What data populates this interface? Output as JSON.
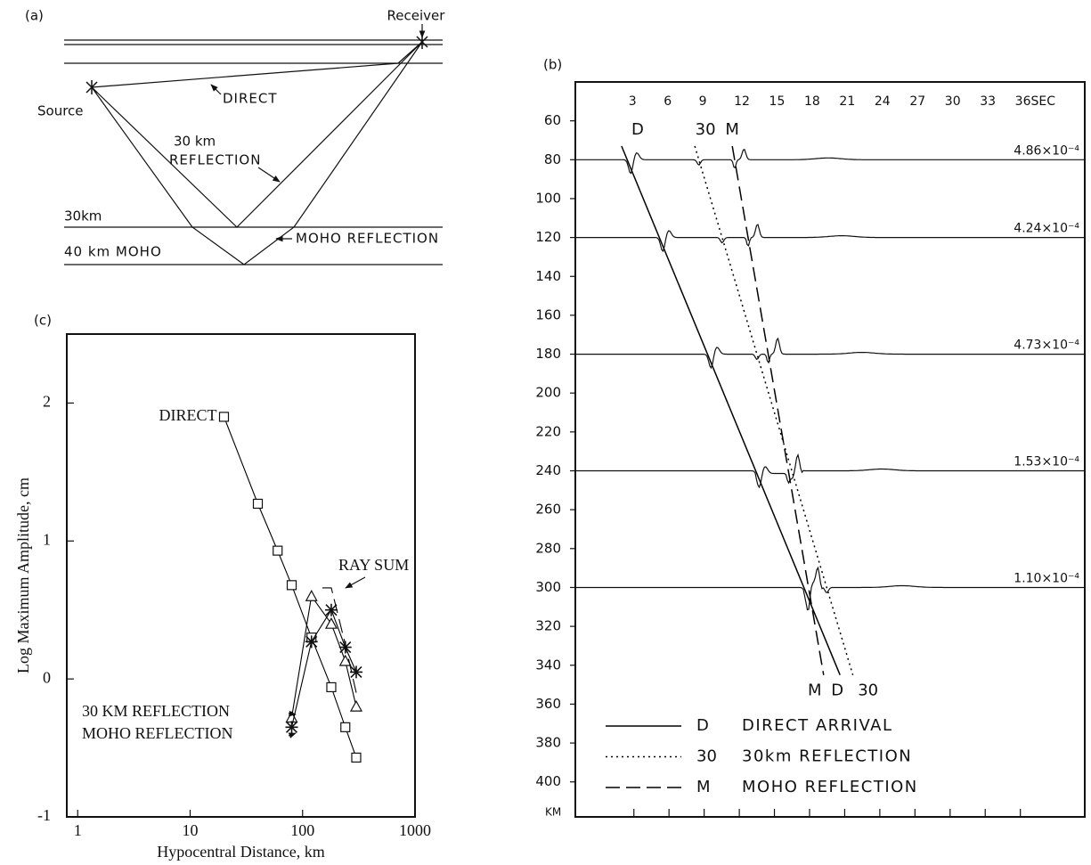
{
  "panel_a": {
    "label": "(a)",
    "receiver": "Receiver",
    "source": "Source",
    "direct": "DIRECT",
    "reflection_30_depth": "30 km",
    "reflection_30_word": "REFLECTION",
    "moho_reflection": "MOHO REFLECTION",
    "depth_30": "30km",
    "moho": "40 km MOHO"
  },
  "chart_data": [
    {
      "type": "seismogram",
      "panel_label": "(b)",
      "ylabel": "KM",
      "xlim": [
        -2,
        41.5
      ],
      "ylim": [
        40,
        418
      ],
      "xticks": [
        3,
        6,
        9,
        12,
        15,
        18,
        21,
        24,
        27,
        30,
        33,
        {
          "value": 36,
          "label": "36SEC"
        }
      ],
      "yticks": [
        60,
        80,
        100,
        120,
        140,
        160,
        180,
        200,
        220,
        240,
        260,
        280,
        300,
        320,
        340,
        360,
        380,
        400
      ],
      "traces": [
        {
          "distance": 80,
          "amplitude": "4.86×10⁻⁴"
        },
        {
          "distance": 120,
          "amplitude": "4.24×10⁻⁴"
        },
        {
          "distance": 180,
          "amplitude": "4.73×10⁻⁴"
        },
        {
          "distance": 240,
          "amplitude": "1.53×10⁻⁴"
        },
        {
          "distance": 300,
          "amplitude": "1.10×10⁻⁴"
        }
      ],
      "series": [
        {
          "name": "D",
          "label": "DIRECT ARRIVAL",
          "dash": "solid",
          "color": "#000000",
          "x": [
            1.95,
            20.6
          ],
          "values": [
            73,
            345
          ]
        },
        {
          "name": "30",
          "label": "30km REFLECTION",
          "dash": "dotted",
          "color": "#000000",
          "x": [
            8.2,
            21.7
          ],
          "values": [
            73,
            345
          ]
        },
        {
          "name": "M",
          "label": "MOHO REFLECTION",
          "dash": "dashed",
          "color": "#000000",
          "x": [
            11.4,
            19.2
          ],
          "values": [
            73,
            345
          ]
        }
      ]
    },
    {
      "type": "line",
      "panel_label": "(c)",
      "xlabel": "Hypocentral Distance, km",
      "ylabel": "Log Maximum Amplitude, cm",
      "xscale": "log",
      "xlim": [
        0.8,
        1000
      ],
      "ylim": [
        -1,
        2.5
      ],
      "xticks": [
        1,
        10,
        100,
        1000
      ],
      "yticks": [
        -1,
        0,
        1,
        2
      ],
      "series": [
        {
          "name": "DIRECT",
          "marker": "square",
          "dash": "solid",
          "color": "#000000",
          "x": [
            20,
            40,
            60,
            80,
            120,
            180,
            240,
            300
          ],
          "values": [
            1.9,
            1.27,
            0.93,
            0.68,
            0.3,
            -0.06,
            -0.35,
            -0.57
          ]
        },
        {
          "name": "30 KM REFLECTION",
          "marker": "triangle",
          "dash": "solid",
          "color": "#000000",
          "x": [
            80,
            120,
            180,
            240,
            300
          ],
          "values": [
            -0.28,
            0.6,
            0.4,
            0.13,
            -0.2
          ]
        },
        {
          "name": "MOHO REFLECTION",
          "marker": "star",
          "dash": "solid",
          "color": "#000000",
          "x": [
            80,
            120,
            180,
            240,
            300
          ],
          "values": [
            -0.35,
            0.27,
            0.5,
            0.23,
            0.05
          ]
        },
        {
          "name": "RAY SUM",
          "marker": "none",
          "dash": "dashed",
          "color": "#000000",
          "x": [
            150,
            180,
            240,
            300
          ],
          "values": [
            0.66,
            0.66,
            0.25,
            -0.1
          ]
        }
      ]
    }
  ]
}
